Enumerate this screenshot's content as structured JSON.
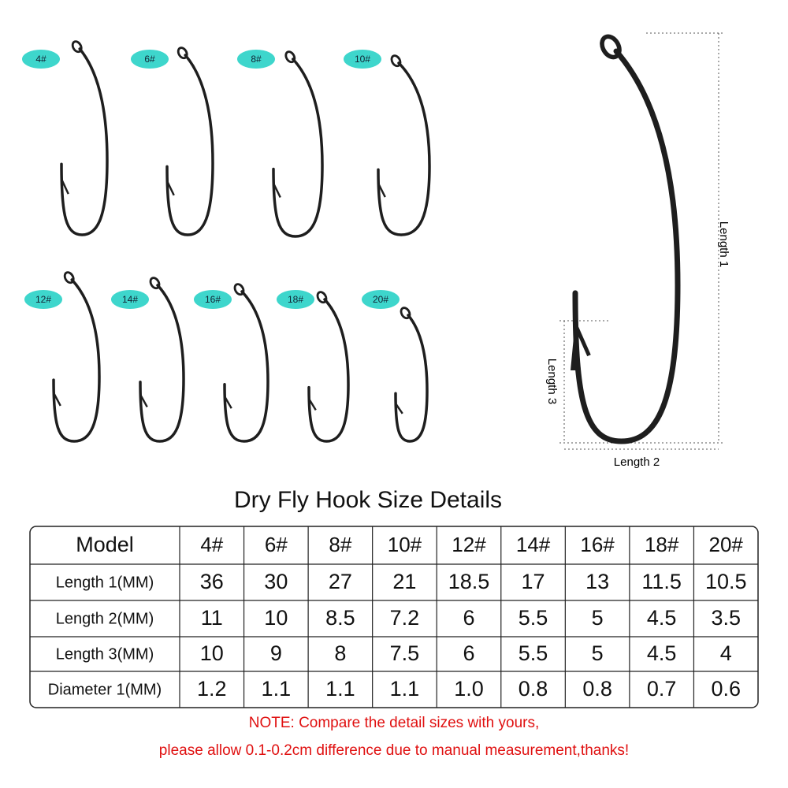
{
  "hooks": [
    "4#",
    "6#",
    "8#",
    "10#",
    "12#",
    "14#",
    "16#",
    "18#",
    "20#"
  ],
  "diagram": {
    "length1": "Length 1",
    "length2": "Length 2",
    "length3": "Length 3"
  },
  "title": "Dry Fly Hook Size Details",
  "table": {
    "header": [
      "Model",
      "4#",
      "6#",
      "8#",
      "10#",
      "12#",
      "14#",
      "16#",
      "18#",
      "20#"
    ],
    "rows": [
      [
        "Length 1(MM)",
        "36",
        "30",
        "27",
        "21",
        "18.5",
        "17",
        "13",
        "11.5",
        "10.5"
      ],
      [
        "Length 2(MM)",
        "11",
        "10",
        "8.5",
        "7.2",
        "6",
        "5.5",
        "5",
        "4.5",
        "3.5"
      ],
      [
        "Length 3(MM)",
        "10",
        "9",
        "8",
        "7.5",
        "6",
        "5.5",
        "5",
        "4.5",
        "4"
      ],
      [
        "Diameter 1(MM)",
        "1.2",
        "1.1",
        "1.1",
        "1.1",
        "1.0",
        "0.8",
        "0.8",
        "0.7",
        "0.6"
      ]
    ]
  },
  "note": [
    "NOTE: Compare the detail sizes with yours,",
    "please allow 0.1-0.2cm difference due to manual measurement,thanks!"
  ]
}
